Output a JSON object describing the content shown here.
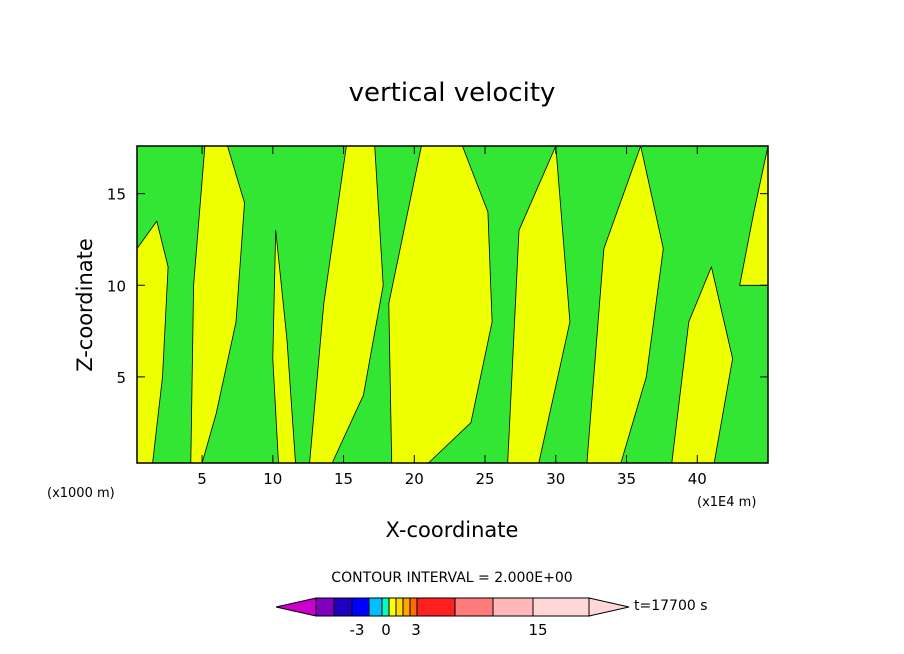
{
  "chart_data": {
    "type": "heatmap",
    "title": "vertical velocity",
    "xlabel": "X-coordinate",
    "ylabel": "Z-coordinate",
    "x_unit": "(x1E4 m)",
    "y_unit": "(x1000 m)",
    "xlim": [
      0.4,
      45
    ],
    "ylim": [
      0.3,
      17.6
    ],
    "x_ticks": [
      {
        "value": 5,
        "label": "5"
      },
      {
        "value": 10,
        "label": "10"
      },
      {
        "value": 15,
        "label": "15"
      },
      {
        "value": 20,
        "label": "20"
      },
      {
        "value": 25,
        "label": "25"
      },
      {
        "value": 30,
        "label": "30"
      },
      {
        "value": 35,
        "label": "35"
      },
      {
        "value": 40,
        "label": "40"
      }
    ],
    "y_ticks": [
      {
        "value": 5,
        "label": "5"
      },
      {
        "value": 10,
        "label": "10"
      },
      {
        "value": 15,
        "label": "15"
      }
    ],
    "contour_interval_text": "CONTOUR INTERVAL = 2.000E+00",
    "time_text": "t=17700 s",
    "colorbar": {
      "colors": [
        "#cc00cc",
        "#7f00bf",
        "#1f00bf",
        "#0000ff",
        "#00bfff",
        "#00ffbf",
        "#ffff00",
        "#ffd900",
        "#ffa500",
        "#ff6a00",
        "#ff2020",
        "#ff7a7a",
        "#ffb7b7",
        "#ffd7d7"
      ],
      "tick_labels": [
        "-3",
        "0",
        "3",
        "15"
      ]
    },
    "field_colors": {
      "negative": "#33e633",
      "positive": "#eeff00",
      "contour": "#000000"
    },
    "regions_positive": [
      {
        "x": [
          0.4,
          1.5,
          2.2,
          2.6,
          1.8,
          0.4
        ],
        "z": [
          0.3,
          0.3,
          5,
          11,
          13.5,
          12
        ]
      },
      {
        "x": [
          4.2,
          5.0,
          6.0,
          7.4,
          8.0,
          6.8,
          5.2,
          4.4
        ],
        "z": [
          0.3,
          0.3,
          3,
          8,
          14.5,
          17.6,
          17.6,
          10
        ]
      },
      {
        "x": [
          10.4,
          11.6,
          11.0,
          10.2,
          10.0
        ],
        "z": [
          0.3,
          0.3,
          7,
          13,
          6
        ]
      },
      {
        "x": [
          12.6,
          14.2,
          16.4,
          17.8,
          17.2,
          15.2,
          13.6
        ],
        "z": [
          0.3,
          0.3,
          4,
          10,
          17.6,
          17.6,
          9
        ]
      },
      {
        "x": [
          18.4,
          21.0,
          24.0,
          25.5,
          25.2,
          23.4,
          20.5,
          18.2
        ],
        "z": [
          0.3,
          0.3,
          2.5,
          8,
          14,
          17.6,
          17.6,
          9
        ]
      },
      {
        "x": [
          26.6,
          28.8,
          31.0,
          30.0,
          27.4
        ],
        "z": [
          0.3,
          0.3,
          8,
          17.6,
          13
        ]
      },
      {
        "x": [
          32.2,
          34.6,
          36.4,
          37.6,
          36.0,
          33.4
        ],
        "z": [
          0.3,
          0.3,
          5,
          12,
          17.6,
          12
        ]
      },
      {
        "x": [
          38.2,
          41.2,
          42.5,
          41.0,
          39.4
        ],
        "z": [
          0.3,
          0.3,
          6,
          11,
          8
        ]
      },
      {
        "x": [
          43.0,
          45.0,
          45.0,
          44.0
        ],
        "z": [
          10,
          10,
          17.6,
          14
        ]
      }
    ]
  }
}
